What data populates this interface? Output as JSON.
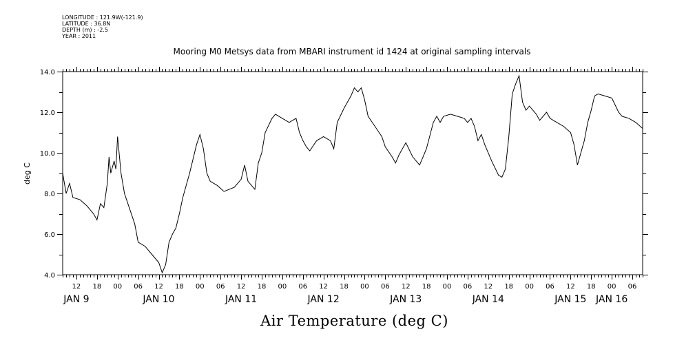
{
  "header": {
    "longitude": "LONGITUDE : 121.9W(-121.9)",
    "latitude": "LATITUDE : 36.8N",
    "depth": "DEPTH (m) : -2.5",
    "year": "YEAR : 2011"
  },
  "chart_data": {
    "type": "line",
    "title": "Mooring M0 Metsys data from MBARI instrument id 1424 at original sampling intervals",
    "xlabel": "Air Temperature (deg C)",
    "ylabel": "deg C",
    "ylim": [
      4.0,
      14.0
    ],
    "y_ticks": [
      "4.0",
      "6.0",
      "8.0",
      "10.0",
      "12.0",
      "14.0"
    ],
    "x_hour_ticks": [
      {
        "day": 9,
        "hour": 12,
        "label": "12"
      },
      {
        "day": 9,
        "hour": 18,
        "label": "18"
      },
      {
        "day": 10,
        "hour": 0,
        "label": "00"
      },
      {
        "day": 10,
        "hour": 6,
        "label": "06"
      },
      {
        "day": 10,
        "hour": 12,
        "label": "12"
      },
      {
        "day": 10,
        "hour": 18,
        "label": "18"
      },
      {
        "day": 11,
        "hour": 0,
        "label": "00"
      },
      {
        "day": 11,
        "hour": 6,
        "label": "06"
      },
      {
        "day": 11,
        "hour": 12,
        "label": "12"
      },
      {
        "day": 11,
        "hour": 18,
        "label": "18"
      },
      {
        "day": 12,
        "hour": 0,
        "label": "00"
      },
      {
        "day": 12,
        "hour": 6,
        "label": "06"
      },
      {
        "day": 12,
        "hour": 12,
        "label": "12"
      },
      {
        "day": 12,
        "hour": 18,
        "label": "18"
      },
      {
        "day": 13,
        "hour": 0,
        "label": "00"
      },
      {
        "day": 13,
        "hour": 6,
        "label": "06"
      },
      {
        "day": 13,
        "hour": 12,
        "label": "12"
      },
      {
        "day": 13,
        "hour": 18,
        "label": "18"
      },
      {
        "day": 14,
        "hour": 0,
        "label": "00"
      },
      {
        "day": 14,
        "hour": 6,
        "label": "06"
      },
      {
        "day": 14,
        "hour": 12,
        "label": "12"
      },
      {
        "day": 14,
        "hour": 18,
        "label": "18"
      },
      {
        "day": 15,
        "hour": 0,
        "label": "00"
      },
      {
        "day": 15,
        "hour": 6,
        "label": "06"
      },
      {
        "day": 15,
        "hour": 12,
        "label": "12"
      },
      {
        "day": 15,
        "hour": 18,
        "label": "18"
      },
      {
        "day": 16,
        "hour": 0,
        "label": "00"
      },
      {
        "day": 16,
        "hour": 6,
        "label": "06"
      }
    ],
    "x_day_labels": [
      {
        "day": 9,
        "hour": 12,
        "label": "JAN  9"
      },
      {
        "day": 10,
        "hour": 12,
        "label": "JAN 10"
      },
      {
        "day": 11,
        "hour": 12,
        "label": "JAN 11"
      },
      {
        "day": 12,
        "hour": 12,
        "label": "JAN 12"
      },
      {
        "day": 13,
        "hour": 12,
        "label": "JAN 13"
      },
      {
        "day": 14,
        "hour": 12,
        "label": "JAN 14"
      },
      {
        "day": 15,
        "hour": 12,
        "label": "JAN 15"
      },
      {
        "day": 16,
        "hour": 0,
        "label": "JAN 16"
      }
    ],
    "xlim": [
      "2011-01-09 08:00",
      "2011-01-16 09:00"
    ],
    "x_grid": false,
    "y_grid": false,
    "series": [
      {
        "points": [
          [
            "2011-01-09 08:00",
            9.0
          ],
          [
            "2011-01-09 09:00",
            8.0
          ],
          [
            "2011-01-09 10:00",
            8.5
          ],
          [
            "2011-01-09 11:00",
            7.8
          ],
          [
            "2011-01-09 13:00",
            7.7
          ],
          [
            "2011-01-09 15:00",
            7.4
          ],
          [
            "2011-01-09 17:00",
            7.0
          ],
          [
            "2011-01-09 18:00",
            6.7
          ],
          [
            "2011-01-09 19:00",
            7.5
          ],
          [
            "2011-01-09 20:00",
            7.3
          ],
          [
            "2011-01-09 21:00",
            8.5
          ],
          [
            "2011-01-09 21:30",
            9.8
          ],
          [
            "2011-01-09 22:00",
            9.0
          ],
          [
            "2011-01-09 23:00",
            9.6
          ],
          [
            "2011-01-09 23:30",
            9.2
          ],
          [
            "2011-01-10 00:00",
            10.8
          ],
          [
            "2011-01-10 01:00",
            9.0
          ],
          [
            "2011-01-10 02:00",
            8.0
          ],
          [
            "2011-01-10 03:00",
            7.5
          ],
          [
            "2011-01-10 05:00",
            6.5
          ],
          [
            "2011-01-10 06:00",
            5.6
          ],
          [
            "2011-01-10 08:00",
            5.4
          ],
          [
            "2011-01-10 10:00",
            5.0
          ],
          [
            "2011-01-10 12:00",
            4.6
          ],
          [
            "2011-01-10 13:00",
            4.1
          ],
          [
            "2011-01-10 14:00",
            4.5
          ],
          [
            "2011-01-10 15:00",
            5.6
          ],
          [
            "2011-01-10 16:00",
            6.0
          ],
          [
            "2011-01-10 17:00",
            6.3
          ],
          [
            "2011-01-10 18:00",
            7.0
          ],
          [
            "2011-01-10 19:00",
            7.8
          ],
          [
            "2011-01-10 21:00",
            9.0
          ],
          [
            "2011-01-10 23:00",
            10.4
          ],
          [
            "2011-01-11 00:00",
            10.9
          ],
          [
            "2011-01-11 01:00",
            10.2
          ],
          [
            "2011-01-11 02:00",
            9.0
          ],
          [
            "2011-01-11 03:00",
            8.6
          ],
          [
            "2011-01-11 05:00",
            8.4
          ],
          [
            "2011-01-11 07:00",
            8.1
          ],
          [
            "2011-01-11 10:00",
            8.3
          ],
          [
            "2011-01-11 12:00",
            8.7
          ],
          [
            "2011-01-11 13:00",
            9.4
          ],
          [
            "2011-01-11 14:00",
            8.6
          ],
          [
            "2011-01-11 16:00",
            8.2
          ],
          [
            "2011-01-11 17:00",
            9.5
          ],
          [
            "2011-01-11 18:00",
            10.0
          ],
          [
            "2011-01-11 19:00",
            11.0
          ],
          [
            "2011-01-11 21:00",
            11.7
          ],
          [
            "2011-01-11 22:00",
            11.9
          ],
          [
            "2011-01-12 00:00",
            11.7
          ],
          [
            "2011-01-12 02:00",
            11.5
          ],
          [
            "2011-01-12 04:00",
            11.7
          ],
          [
            "2011-01-12 05:00",
            11.0
          ],
          [
            "2011-01-12 06:00",
            10.6
          ],
          [
            "2011-01-12 07:00",
            10.3
          ],
          [
            "2011-01-12 08:00",
            10.1
          ],
          [
            "2011-01-12 10:00",
            10.6
          ],
          [
            "2011-01-12 12:00",
            10.8
          ],
          [
            "2011-01-12 14:00",
            10.6
          ],
          [
            "2011-01-12 15:00",
            10.2
          ],
          [
            "2011-01-12 16:00",
            11.5
          ],
          [
            "2011-01-12 18:00",
            12.2
          ],
          [
            "2011-01-12 20:00",
            12.8
          ],
          [
            "2011-01-12 21:00",
            13.2
          ],
          [
            "2011-01-12 22:00",
            13.0
          ],
          [
            "2011-01-12 23:00",
            13.2
          ],
          [
            "2011-01-13 00:00",
            12.6
          ],
          [
            "2011-01-13 01:00",
            11.8
          ],
          [
            "2011-01-13 03:00",
            11.3
          ],
          [
            "2011-01-13 05:00",
            10.8
          ],
          [
            "2011-01-13 06:00",
            10.3
          ],
          [
            "2011-01-13 08:00",
            9.8
          ],
          [
            "2011-01-13 09:00",
            9.5
          ],
          [
            "2011-01-13 10:00",
            9.9
          ],
          [
            "2011-01-13 12:00",
            10.5
          ],
          [
            "2011-01-13 14:00",
            9.8
          ],
          [
            "2011-01-13 16:00",
            9.4
          ],
          [
            "2011-01-13 18:00",
            10.2
          ],
          [
            "2011-01-13 20:00",
            11.5
          ],
          [
            "2011-01-13 21:00",
            11.8
          ],
          [
            "2011-01-13 22:00",
            11.5
          ],
          [
            "2011-01-13 23:00",
            11.8
          ],
          [
            "2011-01-14 01:00",
            11.9
          ],
          [
            "2011-01-14 03:00",
            11.8
          ],
          [
            "2011-01-14 05:00",
            11.7
          ],
          [
            "2011-01-14 06:00",
            11.5
          ],
          [
            "2011-01-14 07:00",
            11.7
          ],
          [
            "2011-01-14 08:00",
            11.3
          ],
          [
            "2011-01-14 09:00",
            10.6
          ],
          [
            "2011-01-14 10:00",
            10.9
          ],
          [
            "2011-01-14 11:00",
            10.4
          ],
          [
            "2011-01-14 13:00",
            9.6
          ],
          [
            "2011-01-14 15:00",
            8.9
          ],
          [
            "2011-01-14 16:00",
            8.8
          ],
          [
            "2011-01-14 17:00",
            9.2
          ],
          [
            "2011-01-14 18:00",
            10.8
          ],
          [
            "2011-01-14 19:00",
            12.9
          ],
          [
            "2011-01-14 20:00",
            13.4
          ],
          [
            "2011-01-14 21:00",
            13.8
          ],
          [
            "2011-01-14 22:00",
            12.5
          ],
          [
            "2011-01-14 23:00",
            12.1
          ],
          [
            "2011-01-15 00:00",
            12.3
          ],
          [
            "2011-01-15 02:00",
            11.9
          ],
          [
            "2011-01-15 03:00",
            11.6
          ],
          [
            "2011-01-15 05:00",
            12.0
          ],
          [
            "2011-01-15 06:00",
            11.7
          ],
          [
            "2011-01-15 08:00",
            11.5
          ],
          [
            "2011-01-15 10:00",
            11.3
          ],
          [
            "2011-01-15 12:00",
            11.0
          ],
          [
            "2011-01-15 13:00",
            10.4
          ],
          [
            "2011-01-15 14:00",
            9.4
          ],
          [
            "2011-01-15 15:00",
            10.0
          ],
          [
            "2011-01-15 16:00",
            10.6
          ],
          [
            "2011-01-15 17:00",
            11.5
          ],
          [
            "2011-01-15 18:00",
            12.1
          ],
          [
            "2011-01-15 19:00",
            12.8
          ],
          [
            "2011-01-15 20:00",
            12.9
          ],
          [
            "2011-01-15 22:00",
            12.8
          ],
          [
            "2011-01-16 00:00",
            12.7
          ],
          [
            "2011-01-16 02:00",
            12.0
          ],
          [
            "2011-01-16 03:00",
            11.8
          ],
          [
            "2011-01-16 05:00",
            11.7
          ],
          [
            "2011-01-16 07:00",
            11.5
          ],
          [
            "2011-01-16 09:00",
            11.2
          ]
        ]
      }
    ]
  }
}
